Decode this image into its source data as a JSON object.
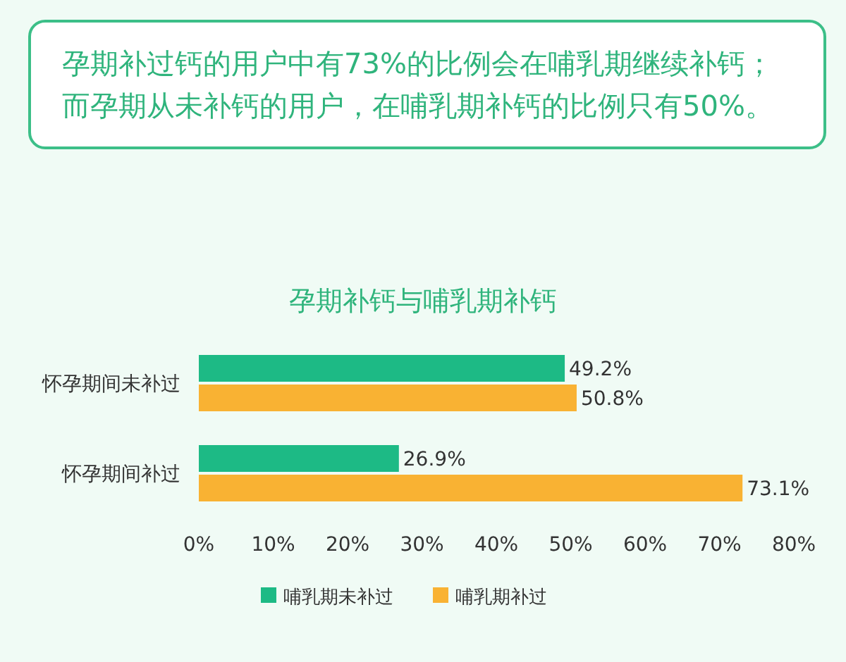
{
  "chart_data": {
    "type": "bar",
    "orientation": "horizontal",
    "title": "孕期补钙与哺乳期补钙",
    "annotations": [
      "孕期补过钙的用户中有73%的比例会在哺乳期继续补钙；而孕期从未补钙的用户，在哺乳期补钙的比例只有50%。"
    ],
    "categories": [
      "怀孕期间未补过",
      "怀孕期间补过"
    ],
    "series": [
      {
        "name": "哺乳期未补过",
        "color": "#1dba85",
        "values": [
          49.2,
          26.9
        ],
        "value_labels": [
          "49.2%",
          "26.9%"
        ]
      },
      {
        "name": "哺乳期补过",
        "color": "#f9b233",
        "values": [
          50.8,
          73.1
        ],
        "value_labels": [
          "50.8%",
          "73.1%"
        ]
      }
    ],
    "xlim": [
      0,
      80
    ],
    "xticks": [
      {
        "value": 0,
        "label": "0%"
      },
      {
        "value": 10,
        "label": "10%"
      },
      {
        "value": 20,
        "label": "20%"
      },
      {
        "value": 30,
        "label": "30%"
      },
      {
        "value": 40,
        "label": "40%"
      },
      {
        "value": 50,
        "label": "50%"
      },
      {
        "value": 60,
        "label": "60%"
      },
      {
        "value": 70,
        "label": "70%"
      },
      {
        "value": 80,
        "label": "80%"
      }
    ],
    "legend": "bottom"
  }
}
